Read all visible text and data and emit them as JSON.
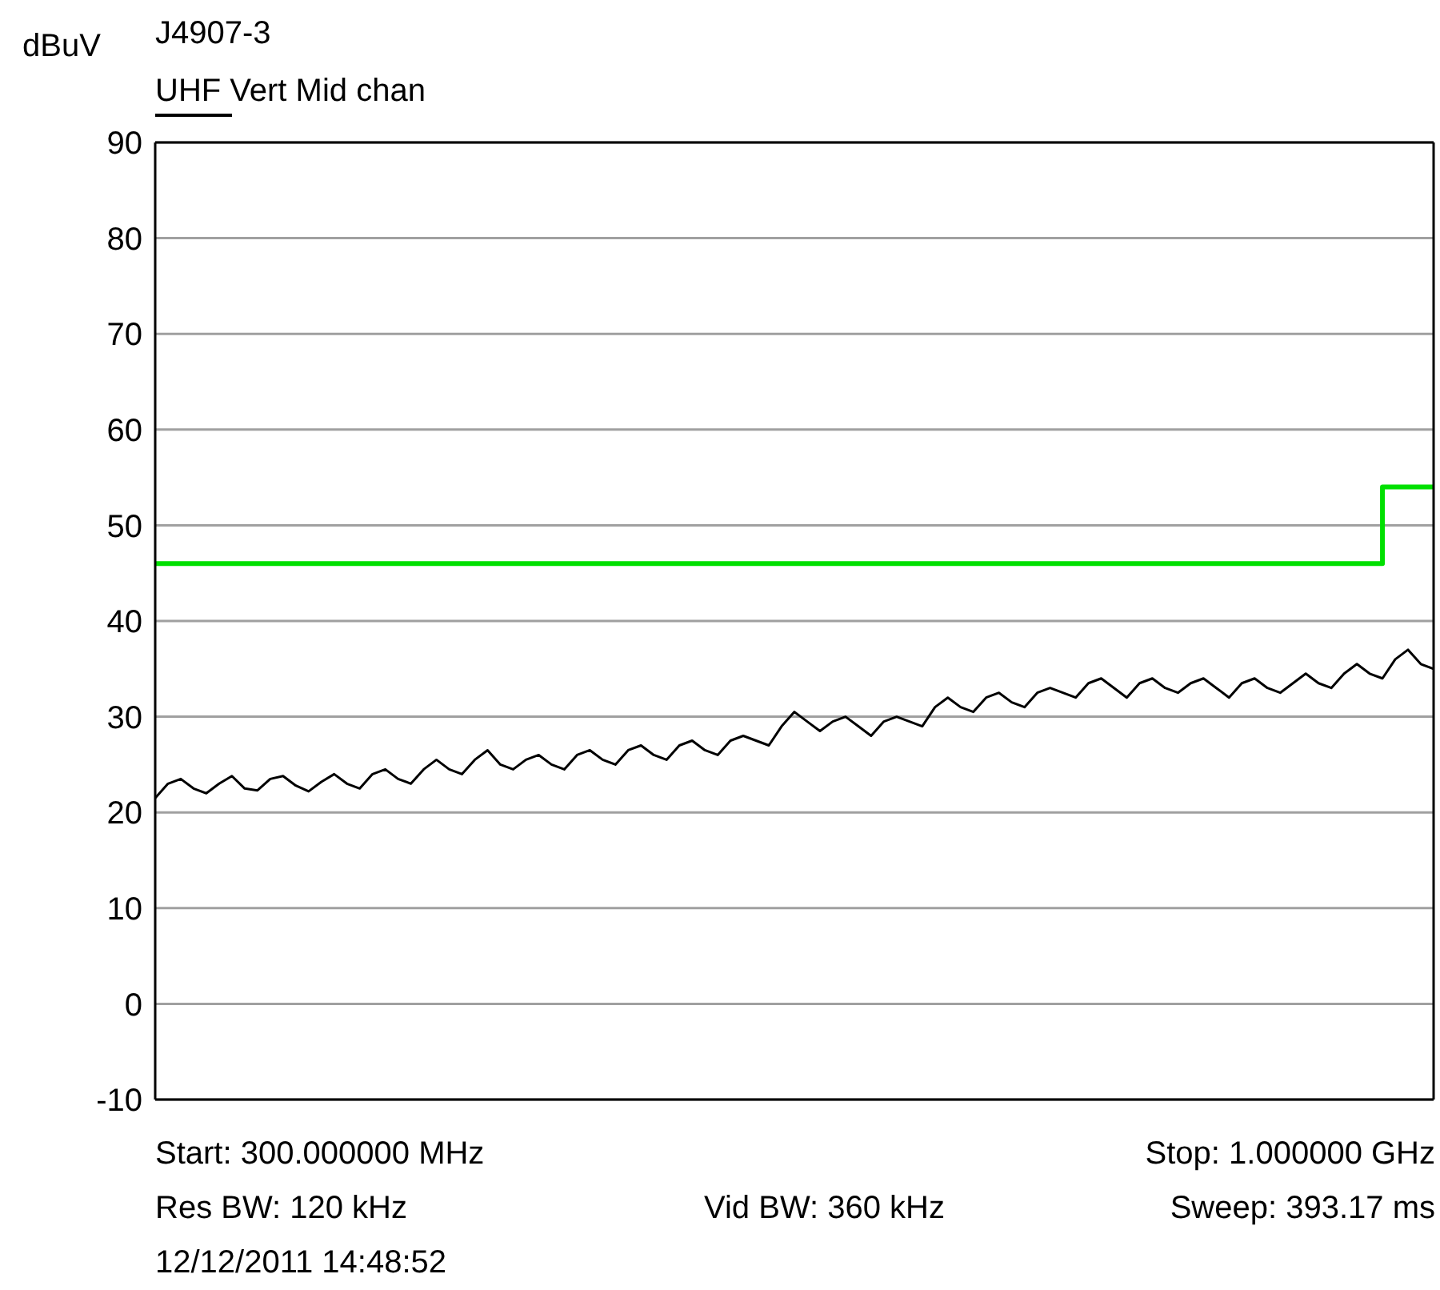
{
  "chart_data": {
    "type": "line",
    "title": "J4907-3",
    "subtitle": "UHF Vert Mid chan",
    "ylabel": "dBuV",
    "categories": [
      null,
      null,
      null,
      null,
      null,
      null,
      null,
      null,
      null,
      null,
      null,
      null,
      null,
      null,
      null,
      null,
      null,
      null,
      null,
      null,
      null,
      null,
      null,
      null,
      null,
      null,
      null,
      null,
      null,
      null,
      null,
      null,
      null,
      null,
      null,
      null,
      null,
      null,
      null,
      null,
      null,
      null,
      null,
      null,
      null,
      null,
      null,
      null,
      null,
      null,
      null,
      null,
      null,
      null,
      null,
      null,
      null,
      null,
      null,
      null,
      null,
      null,
      null,
      null,
      null,
      null,
      null,
      null,
      null,
      null,
      null,
      null,
      null,
      null,
      null,
      null,
      null,
      null,
      null,
      null,
      null,
      null,
      null,
      null,
      null,
      null,
      null,
      null,
      null,
      null,
      null,
      null,
      null,
      null,
      null,
      null,
      null,
      null,
      null,
      null,
      null
    ],
    "ylim": [
      -10,
      90
    ],
    "yticks": [
      -10,
      0,
      10,
      20,
      30,
      40,
      50,
      60,
      70,
      80,
      90
    ],
    "grid": "y",
    "marker": "none",
    "series": [
      {
        "color": "#000000",
        "values": [
          21.5,
          23,
          23.5,
          22.5,
          22,
          23,
          23.8,
          22.5,
          22.3,
          23.5,
          23.8,
          22.8,
          22.2,
          23.2,
          24,
          23,
          22.5,
          24,
          24.5,
          23.5,
          23,
          24.5,
          25.5,
          24.5,
          24,
          25.5,
          26.5,
          25,
          24.5,
          25.5,
          26,
          25,
          24.5,
          26,
          26.5,
          25.5,
          25,
          26.5,
          27,
          26,
          25.5,
          27,
          27.5,
          26.5,
          26,
          27.5,
          28,
          27.5,
          27,
          29,
          30.5,
          29.5,
          28.5,
          29.5,
          30,
          29,
          28,
          29.5,
          30,
          29.5,
          29,
          31,
          32,
          31,
          30.5,
          32,
          32.5,
          31.5,
          31,
          32.5,
          33,
          32.5,
          32,
          33.5,
          34,
          33,
          32,
          33.5,
          34,
          33,
          32.5,
          33.5,
          34,
          33,
          32,
          33.5,
          34,
          33,
          32.5,
          33.5,
          34.5,
          33.5,
          33,
          34.5,
          35.5,
          34.5,
          34,
          36,
          37,
          35.5,
          35
        ]
      },
      {
        "type": "step",
        "color": "#00e000",
        "values": [
          46,
          46,
          46,
          46,
          46,
          46,
          46,
          46,
          46,
          46,
          46,
          46,
          46,
          46,
          46,
          46,
          46,
          46,
          46,
          46,
          46,
          46,
          46,
          46,
          46,
          46,
          46,
          46,
          46,
          46,
          46,
          46,
          46,
          46,
          46,
          46,
          46,
          46,
          46,
          46,
          46,
          46,
          46,
          46,
          46,
          46,
          46,
          46,
          46,
          46,
          46,
          46,
          46,
          46,
          46,
          46,
          46,
          46,
          46,
          46,
          46,
          46,
          46,
          46,
          46,
          46,
          46,
          46,
          46,
          46,
          46,
          46,
          46,
          46,
          46,
          46,
          46,
          46,
          46,
          46,
          46,
          46,
          46,
          46,
          46,
          46,
          46,
          46,
          46,
          46,
          46,
          46,
          46,
          46,
          46,
          46,
          54,
          54,
          54,
          54,
          54
        ]
      }
    ],
    "annotations": [
      "Start: 300.000000 MHz",
      "Stop: 1.000000 GHz",
      "Res BW: 120 kHz",
      "Vid BW: 360 kHz",
      "Sweep: 393.17 ms",
      "12/12/2011 14:48:52"
    ]
  }
}
